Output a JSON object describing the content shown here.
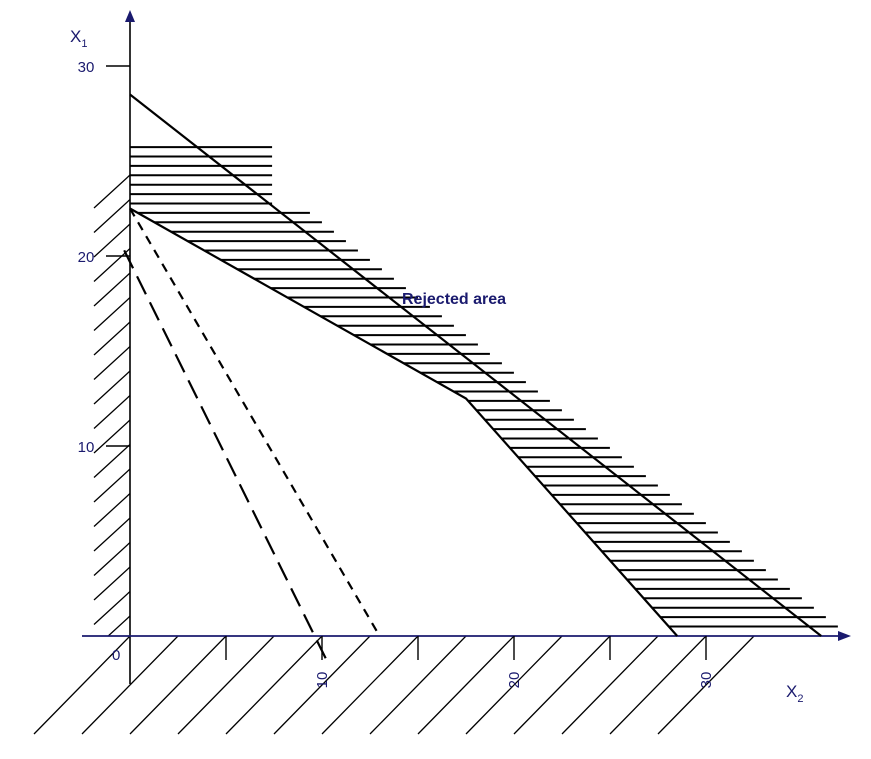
{
  "chart_data": {
    "type": "line",
    "title": "",
    "xlabel": "X",
    "xlabel_sub": "2",
    "ylabel": "X",
    "ylabel_sub": "1",
    "x_ticks": [
      10,
      20,
      30
    ],
    "y_ticks": [
      10,
      20,
      30
    ],
    "origin_label": "0",
    "annotations": [
      {
        "text": "Rejected area",
        "x": 17.5,
        "y": 17.5
      }
    ],
    "series": [
      {
        "style": "solid",
        "points": [
          [
            0,
            28.5
          ],
          [
            36,
            0
          ]
        ]
      },
      {
        "style": "solid",
        "points": [
          [
            0,
            22.5
          ],
          [
            17.5,
            12.5
          ],
          [
            28.5,
            0
          ]
        ]
      },
      {
        "style": "short-dash",
        "points": [
          [
            0,
            22.5
          ],
          [
            13,
            0
          ]
        ]
      },
      {
        "style": "long-dash",
        "points": [
          [
            -0.3,
            20.3
          ],
          [
            10.3,
            -1.4
          ]
        ]
      }
    ],
    "shaded_regions": [
      {
        "name": "rejected-area",
        "hatch": "horizontal"
      },
      {
        "name": "negative-x2",
        "hatch": "diagonal"
      },
      {
        "name": "negative-x1",
        "hatch": "diagonal"
      }
    ],
    "xlim": [
      -2,
      37
    ],
    "ylim": [
      -5,
      32
    ],
    "grid": false,
    "legend": "none"
  }
}
